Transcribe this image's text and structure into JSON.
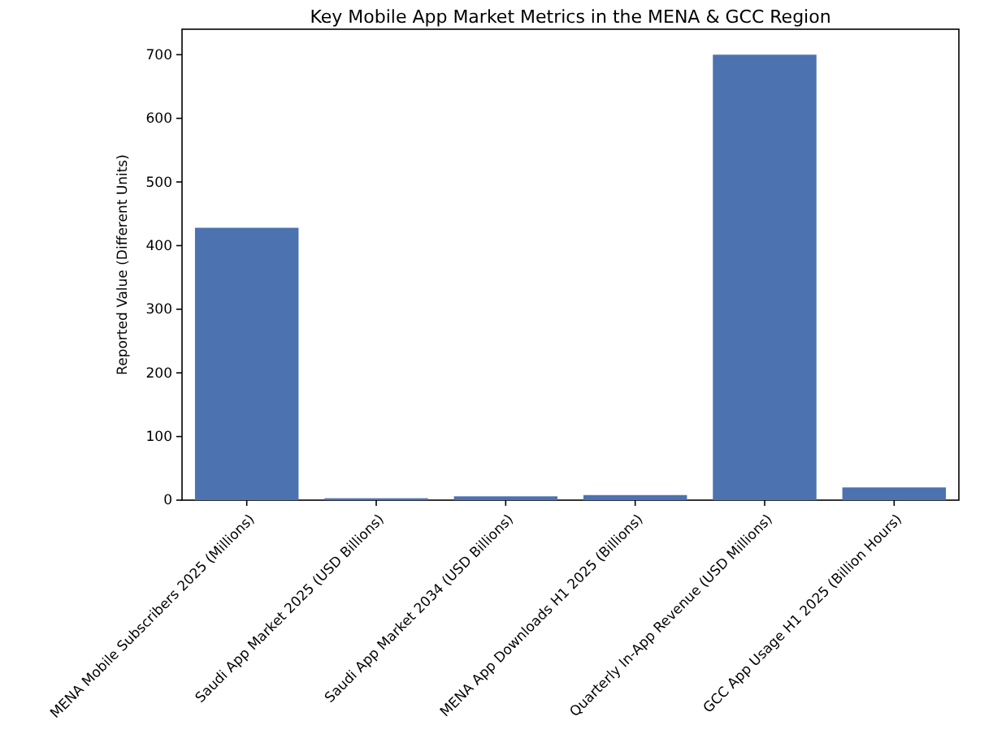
{
  "chart_data": {
    "type": "bar",
    "title": "Key Mobile App Market Metrics in the MENA & GCC Region",
    "ylabel": "Reported Value (Different Units)",
    "categories": [
      "MENA Mobile Subscribers 2025 (Millions)",
      "Saudi App Market 2025 (USD Billions)",
      "Saudi App Market 2034 (USD Billions)",
      "MENA App Downloads H1 2025 (Billions)",
      "Quarterly In-App Revenue (USD Millions)",
      "GCC App Usage H1 2025 (Billion Hours)"
    ],
    "values": [
      428,
      3,
      6,
      8,
      700,
      20
    ],
    "color": "#4c72b0",
    "ylim": [
      0,
      740
    ],
    "yticks": [
      0,
      100,
      200,
      300,
      400,
      500,
      600,
      700
    ],
    "grid": false
  }
}
